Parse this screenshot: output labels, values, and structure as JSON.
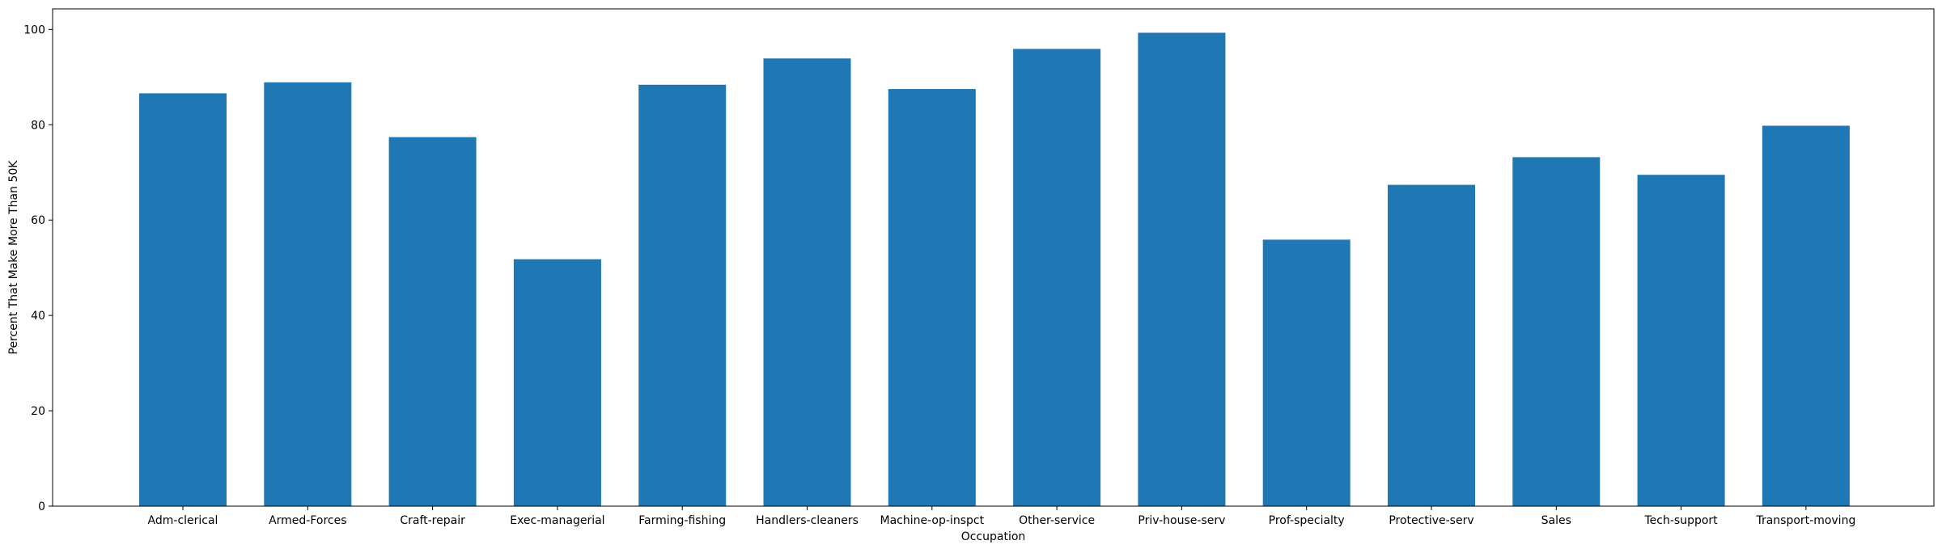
{
  "chart_data": {
    "type": "bar",
    "title": "",
    "xlabel": "Occupation",
    "ylabel": "Percent That Make More Than 50K",
    "categories": [
      "Adm-clerical",
      "Armed-Forces",
      "Craft-repair",
      "Exec-managerial",
      "Farming-fishing",
      "Handlers-cleaners",
      "Machine-op-inspct",
      "Other-service",
      "Priv-house-serv",
      "Prof-specialty",
      "Protective-serv",
      "Sales",
      "Tech-support",
      "Transport-moving"
    ],
    "values": [
      86.6,
      88.9,
      77.4,
      51.8,
      88.4,
      93.9,
      87.5,
      95.9,
      99.3,
      55.9,
      67.4,
      73.2,
      69.5,
      79.8
    ],
    "ylim": [
      0,
      104.3
    ],
    "yticks": [
      0,
      20,
      40,
      60,
      80,
      100
    ],
    "colors": {
      "bar": "#1f77b4",
      "axis": "#000000"
    },
    "grid": false,
    "legend": "none"
  }
}
